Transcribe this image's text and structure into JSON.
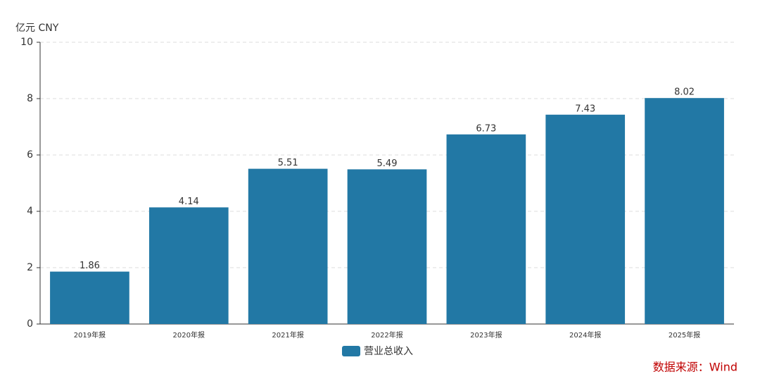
{
  "chart_data": {
    "type": "bar",
    "y_axis_label": "亿元  CNY",
    "categories": [
      "2019年报",
      "2020年报",
      "2021年报",
      "2022年报",
      "2023年报",
      "2024年报",
      "2025年报"
    ],
    "series": [
      {
        "name": "营业总收入",
        "color": "#2278a5",
        "values": [
          1.86,
          4.14,
          5.51,
          5.49,
          6.73,
          7.43,
          8.02
        ]
      }
    ],
    "ylim": [
      0,
      10
    ],
    "yticks": [
      0,
      2,
      4,
      6,
      8,
      10
    ],
    "grid": true,
    "source": "数据来源：Wind"
  }
}
